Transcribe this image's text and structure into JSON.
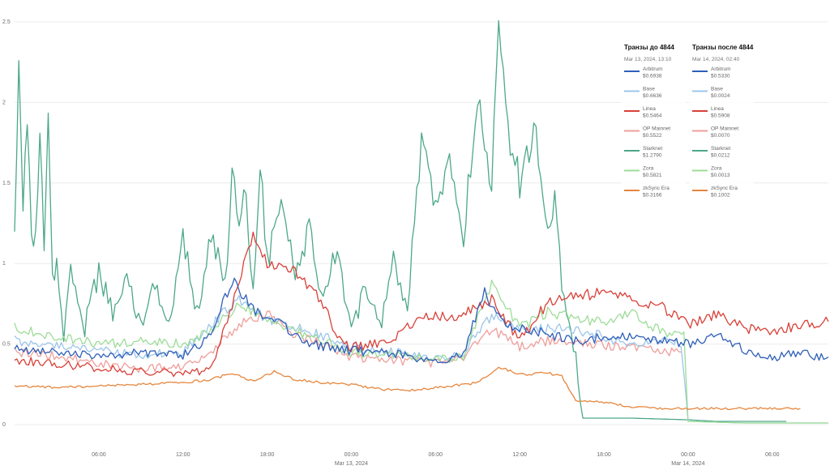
{
  "chart_data": {
    "type": "line",
    "ylim": [
      0,
      2.5
    ],
    "y_ticks": [
      "0",
      "0.5",
      "1",
      "1.5",
      "2",
      "2.5"
    ],
    "x_ticks": [
      {
        "t": 6,
        "label": "06:00"
      },
      {
        "t": 12,
        "label": "12:00"
      },
      {
        "t": 18,
        "label": "18:00"
      },
      {
        "t": 24,
        "label": "00:00",
        "sub": "Mar 13, 2024"
      },
      {
        "t": 30,
        "label": "06:00"
      },
      {
        "t": 36,
        "label": "12:00"
      },
      {
        "t": 42,
        "label": "18:00"
      },
      {
        "t": 48,
        "label": "00:00",
        "sub": "Mar 14, 2024"
      },
      {
        "t": 54,
        "label": "06:00"
      }
    ],
    "x_range": [
      0,
      58
    ],
    "grid": "horizontal",
    "series": [
      {
        "name": "Arbitrum",
        "color": "#2f5fb8",
        "points": [
          [
            0,
            0.47
          ],
          [
            3,
            0.46
          ],
          [
            6,
            0.42
          ],
          [
            9,
            0.45
          ],
          [
            12,
            0.43
          ],
          [
            14,
            0.55
          ],
          [
            15.5,
            0.9
          ],
          [
            17,
            0.72
          ],
          [
            19,
            0.62
          ],
          [
            21,
            0.5
          ],
          [
            24,
            0.46
          ],
          [
            27,
            0.44
          ],
          [
            30,
            0.38
          ],
          [
            32,
            0.45
          ],
          [
            33.5,
            0.82
          ],
          [
            35,
            0.6
          ],
          [
            37,
            0.58
          ],
          [
            40,
            0.52
          ],
          [
            43,
            0.55
          ],
          [
            46,
            0.52
          ],
          [
            48,
            0.5
          ],
          [
            50,
            0.56
          ],
          [
            52,
            0.46
          ],
          [
            54,
            0.42
          ],
          [
            56,
            0.44
          ],
          [
            58,
            0.42
          ]
        ]
      },
      {
        "name": "Base",
        "color": "#9cc6ea",
        "points": [
          [
            0,
            0.52
          ],
          [
            3,
            0.5
          ],
          [
            6,
            0.46
          ],
          [
            9,
            0.43
          ],
          [
            12,
            0.45
          ],
          [
            14,
            0.62
          ],
          [
            16,
            0.78
          ],
          [
            18,
            0.65
          ],
          [
            20,
            0.6
          ],
          [
            22,
            0.55
          ],
          [
            24,
            0.48
          ],
          [
            27,
            0.45
          ],
          [
            30,
            0.4
          ],
          [
            32,
            0.45
          ],
          [
            34,
            0.68
          ],
          [
            36,
            0.58
          ],
          [
            39,
            0.6
          ],
          [
            42,
            0.55
          ],
          [
            44,
            0.48
          ],
          [
            46,
            0.53
          ],
          [
            47.5,
            0.5
          ],
          [
            48,
            0.02
          ],
          [
            52,
            0.01
          ],
          [
            58,
            0.01
          ]
        ]
      },
      {
        "name": "Linea",
        "color": "#d84038",
        "points": [
          [
            0,
            0.4
          ],
          [
            3,
            0.38
          ],
          [
            6,
            0.35
          ],
          [
            9,
            0.33
          ],
          [
            12,
            0.32
          ],
          [
            14,
            0.34
          ],
          [
            15,
            0.6
          ],
          [
            16,
            0.9
          ],
          [
            17,
            1.2
          ],
          [
            18,
            1.0
          ],
          [
            20,
            0.95
          ],
          [
            22,
            0.75
          ],
          [
            23,
            0.55
          ],
          [
            24,
            0.48
          ],
          [
            27,
            0.52
          ],
          [
            29,
            0.68
          ],
          [
            31,
            0.66
          ],
          [
            33,
            0.72
          ],
          [
            34,
            0.78
          ],
          [
            36,
            0.52
          ],
          [
            38,
            0.76
          ],
          [
            40,
            0.8
          ],
          [
            42,
            0.82
          ],
          [
            44,
            0.78
          ],
          [
            46,
            0.74
          ],
          [
            48,
            0.62
          ],
          [
            50,
            0.68
          ],
          [
            52,
            0.6
          ],
          [
            54,
            0.58
          ],
          [
            56,
            0.62
          ],
          [
            58,
            0.64
          ]
        ]
      },
      {
        "name": "OP Mainnet",
        "color": "#ee9e9b",
        "points": [
          [
            0,
            0.45
          ],
          [
            3,
            0.43
          ],
          [
            6,
            0.38
          ],
          [
            9,
            0.35
          ],
          [
            12,
            0.36
          ],
          [
            14,
            0.45
          ],
          [
            16,
            0.62
          ],
          [
            18,
            0.7
          ],
          [
            20,
            0.55
          ],
          [
            22,
            0.5
          ],
          [
            24,
            0.42
          ],
          [
            27,
            0.4
          ],
          [
            30,
            0.38
          ],
          [
            32,
            0.42
          ],
          [
            34,
            0.6
          ],
          [
            36,
            0.48
          ],
          [
            38,
            0.52
          ],
          [
            41,
            0.5
          ],
          [
            44,
            0.48
          ],
          [
            46,
            0.46
          ],
          [
            47.5,
            0.45
          ]
        ]
      },
      {
        "name": "Starknet",
        "color": "#4da88a",
        "points": [
          [
            0,
            1.2
          ],
          [
            0.3,
            2.18
          ],
          [
            0.6,
            1.4
          ],
          [
            0.9,
            1.95
          ],
          [
            1.2,
            1.2
          ],
          [
            1.5,
            1.15
          ],
          [
            1.8,
            1.8
          ],
          [
            2.1,
            1.1
          ],
          [
            2.4,
            1.9
          ],
          [
            2.7,
            0.9
          ],
          [
            3,
            0.98
          ],
          [
            3.5,
            0.55
          ],
          [
            4,
            0.96
          ],
          [
            5,
            0.6
          ],
          [
            6,
            0.95
          ],
          [
            7,
            0.7
          ],
          [
            8,
            0.9
          ],
          [
            9,
            0.6
          ],
          [
            10,
            0.85
          ],
          [
            11,
            0.65
          ],
          [
            12,
            1.15
          ],
          [
            13,
            0.7
          ],
          [
            14,
            1.2
          ],
          [
            15,
            0.85
          ],
          [
            15.5,
            1.5
          ],
          [
            16,
            1.3
          ],
          [
            16.5,
            1.45
          ],
          [
            17,
            0.8
          ],
          [
            17.5,
            1.62
          ],
          [
            18,
            1.0
          ],
          [
            19,
            1.4
          ],
          [
            20,
            0.9
          ],
          [
            21,
            1.2
          ],
          [
            22,
            0.75
          ],
          [
            23,
            1.13
          ],
          [
            24,
            0.55
          ],
          [
            25,
            0.9
          ],
          [
            26,
            0.6
          ],
          [
            27,
            1.0
          ],
          [
            28,
            0.7
          ],
          [
            29,
            1.8
          ],
          [
            30,
            1.3
          ],
          [
            31,
            1.6
          ],
          [
            32,
            1.15
          ],
          [
            33,
            2.1
          ],
          [
            34,
            1.5
          ],
          [
            34.5,
            2.5
          ],
          [
            35,
            1.9
          ],
          [
            36,
            1.5
          ],
          [
            37,
            1.85
          ],
          [
            38,
            1.2
          ],
          [
            38.5,
            1.4
          ],
          [
            39,
            0.9
          ],
          [
            40,
            0.4
          ],
          [
            40.5,
            0.04
          ],
          [
            44,
            0.04
          ],
          [
            48,
            0.03
          ],
          [
            50,
            0.02
          ],
          [
            54,
            0.02
          ],
          [
            55,
            0.02
          ]
        ]
      },
      {
        "name": "Zora",
        "color": "#9ddc98",
        "points": [
          [
            0,
            0.6
          ],
          [
            3,
            0.55
          ],
          [
            6,
            0.5
          ],
          [
            9,
            0.52
          ],
          [
            12,
            0.5
          ],
          [
            14,
            0.58
          ],
          [
            16,
            0.75
          ],
          [
            18,
            0.65
          ],
          [
            20,
            0.58
          ],
          [
            22,
            0.52
          ],
          [
            24,
            0.45
          ],
          [
            27,
            0.43
          ],
          [
            30,
            0.4
          ],
          [
            32,
            0.42
          ],
          [
            34,
            0.88
          ],
          [
            36,
            0.6
          ],
          [
            38,
            0.7
          ],
          [
            40,
            0.66
          ],
          [
            42,
            0.64
          ],
          [
            44,
            0.7
          ],
          [
            46,
            0.58
          ],
          [
            47.7,
            0.55
          ],
          [
            48,
            0.02
          ],
          [
            52,
            0.01
          ],
          [
            58,
            0.01
          ]
        ]
      },
      {
        "name": "zkSync Era",
        "color": "#e5863d",
        "points": [
          [
            0,
            0.24
          ],
          [
            3,
            0.23
          ],
          [
            6,
            0.24
          ],
          [
            9,
            0.25
          ],
          [
            12,
            0.26
          ],
          [
            14,
            0.28
          ],
          [
            15.5,
            0.32
          ],
          [
            17,
            0.27
          ],
          [
            18.5,
            0.33
          ],
          [
            20,
            0.28
          ],
          [
            22,
            0.26
          ],
          [
            24,
            0.25
          ],
          [
            26,
            0.22
          ],
          [
            28,
            0.21
          ],
          [
            30,
            0.23
          ],
          [
            33,
            0.26
          ],
          [
            34.5,
            0.36
          ],
          [
            36,
            0.31
          ],
          [
            38,
            0.32
          ],
          [
            39,
            0.3
          ],
          [
            40,
            0.15
          ],
          [
            42,
            0.14
          ],
          [
            44,
            0.11
          ],
          [
            46,
            0.1
          ],
          [
            48,
            0.1
          ],
          [
            50,
            0.1
          ],
          [
            52,
            0.1
          ],
          [
            54,
            0.1
          ],
          [
            56,
            0.1
          ]
        ]
      }
    ]
  },
  "legend": {
    "before": {
      "title": "Транзы до 4844",
      "date": "Mar 13, 2024, 13:10",
      "items": [
        {
          "name": "Arbitrum",
          "value": "$0.6938",
          "color": "#2f5fb8"
        },
        {
          "name": "Base",
          "value": "$0.6636",
          "color": "#9cc6ea"
        },
        {
          "name": "Linea",
          "value": "$0.5464",
          "color": "#d84038"
        },
        {
          "name": "OP Mainnet",
          "value": "$0.5522",
          "color": "#ee9e9b"
        },
        {
          "name": "Starknet",
          "value": "$1.2790",
          "color": "#4da88a"
        },
        {
          "name": "Zora",
          "value": "$0.5821",
          "color": "#9ddc98"
        },
        {
          "name": "zkSync Era",
          "value": "$0.3166",
          "color": "#e5863d"
        }
      ]
    },
    "after": {
      "title": "Транзы после 4844",
      "date": "Mar 14, 2024, 02:40",
      "items": [
        {
          "name": "Arbitrum",
          "value": "$0.5330",
          "color": "#2f5fb8"
        },
        {
          "name": "Base",
          "value": "$0.0024",
          "color": "#9cc6ea"
        },
        {
          "name": "Linea",
          "value": "$0.5908",
          "color": "#d84038"
        },
        {
          "name": "OP Mainnet",
          "value": "$0.0070",
          "color": "#ee9e9b"
        },
        {
          "name": "Starknet",
          "value": "$0.0212",
          "color": "#4da88a"
        },
        {
          "name": "Zora",
          "value": "$0.0013",
          "color": "#9ddc98"
        },
        {
          "name": "zkSync Era",
          "value": "$0.1002",
          "color": "#e5863d"
        }
      ]
    }
  }
}
